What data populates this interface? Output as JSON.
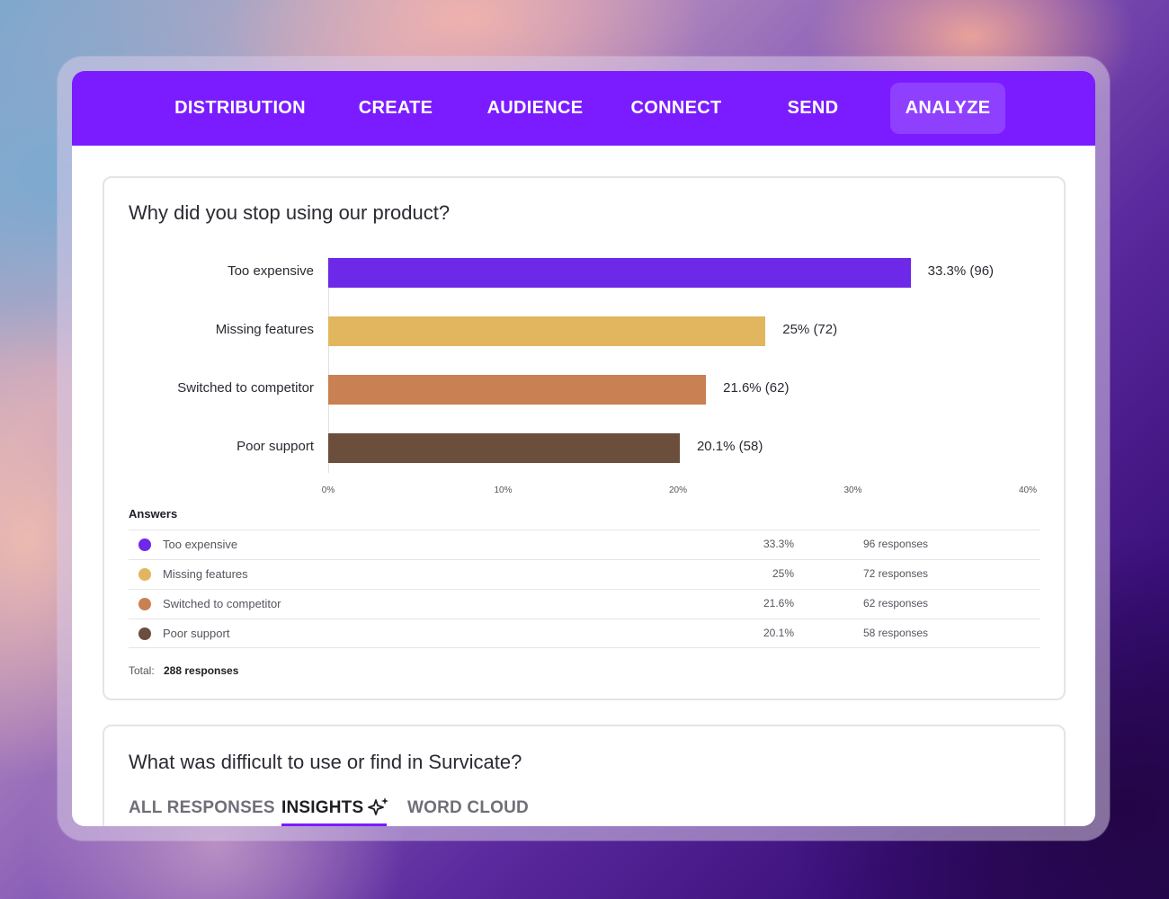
{
  "nav": {
    "items": [
      {
        "label": "DISTRIBUTION"
      },
      {
        "label": "CREATE"
      },
      {
        "label": "AUDIENCE"
      },
      {
        "label": "CONNECT"
      },
      {
        "label": "SEND"
      },
      {
        "label": "ANALYZE",
        "active": true
      }
    ]
  },
  "question1": {
    "title": "Why did you stop using our product?",
    "answers_heading": "Answers",
    "answers": [
      {
        "label": "Too expensive",
        "pct": "33.3%",
        "responses": "96 responses",
        "bar_value": "33.3% (96)",
        "color": "#6d28e8"
      },
      {
        "label": "Missing features",
        "pct": "25%",
        "responses": "72 responses",
        "bar_value": "25% (72)",
        "color": "#e2b65f"
      },
      {
        "label": "Switched to competitor",
        "pct": "21.6%",
        "responses": "62 responses",
        "bar_value": "21.6% (62)",
        "color": "#c98053"
      },
      {
        "label": "Poor support",
        "pct": "20.1%",
        "responses": "58 responses",
        "bar_value": "20.1% (58)",
        "color": "#6b4e3c"
      }
    ],
    "total_label": "Total:",
    "total_value": "288 responses"
  },
  "chart_data": {
    "type": "bar",
    "orientation": "horizontal",
    "categories": [
      "Too expensive",
      "Missing features",
      "Switched to competitor",
      "Poor support"
    ],
    "values": [
      33.3,
      25,
      21.6,
      20.1
    ],
    "counts": [
      96,
      72,
      62,
      58
    ],
    "colors": [
      "#6d28e8",
      "#e2b65f",
      "#c98053",
      "#6b4e3c"
    ],
    "xlim": [
      0,
      40
    ],
    "ticks": [
      "0%",
      "10%",
      "20%",
      "30%",
      "40%"
    ],
    "title": "Why did you stop using our product?",
    "grid": false,
    "legend": "none"
  },
  "question2": {
    "title": "What was difficult to use or find in Survicate?",
    "tabs": [
      {
        "label": "ALL RESPONSES"
      },
      {
        "label": "INSIGHTS",
        "active": true,
        "icon": "sparkle-icon"
      },
      {
        "label": "WORD CLOUD"
      }
    ]
  },
  "colors": {
    "accent": "#7a1cff"
  }
}
